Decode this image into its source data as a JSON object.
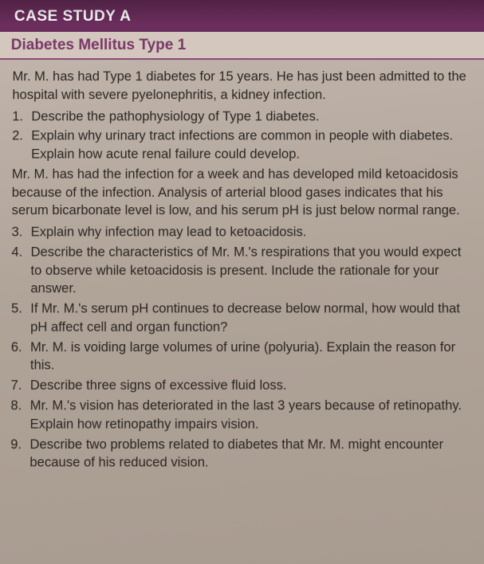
{
  "header": {
    "title": "CASE STUDY A"
  },
  "subtitle": {
    "text": "Diabetes Mellitus Type 1"
  },
  "body": {
    "intro": "Mr. M. has had Type 1 diabetes for 15 years. He has just been admitted to the hospital with severe pyelonephritis, a kidney infection.",
    "q1_num": "1.",
    "q1": "Describe the pathophysiology of Type 1 diabetes.",
    "q2_num": "2.",
    "q2": "Explain why urinary tract infections are common in people with diabetes. Explain how acute renal failure could develop.",
    "mid": "Mr. M. has had the infection for a week and has developed mild ketoacidosis because of the infection. Analysis of arterial blood gases indicates that his serum bicarbonate level is low, and his serum pH is just below normal range.",
    "q3_num": "3.",
    "q3": "Explain why infection may lead to ketoacidosis.",
    "q4_num": "4.",
    "q4": "Describe the characteristics of Mr. M.'s respirations that you would expect to observe while ketoacidosis is present. Include the rationale for your answer.",
    "q5_num": "5.",
    "q5": "If Mr. M.'s serum pH continues to decrease below normal, how would that pH affect cell and organ function?",
    "q6_num": "6.",
    "q6": "Mr. M. is voiding large volumes of urine (polyuria). Explain the reason for this.",
    "q7_num": "7.",
    "q7": "Describe three signs of excessive fluid loss.",
    "q8_num": "8.",
    "q8": "Mr. M.'s vision has deteriorated in the last 3 years because of retinopathy. Explain how retinopathy impairs vision.",
    "q9_num": "9.",
    "q9": "Describe two problems related to diabetes that Mr. M. might encounter because of his reduced vision."
  },
  "colors": {
    "header_bg": "#6b2d5c",
    "header_text": "#ffffff",
    "subtitle_text": "#7a3668",
    "body_text": "#2a2622",
    "page_bg": "#b8aca3"
  }
}
